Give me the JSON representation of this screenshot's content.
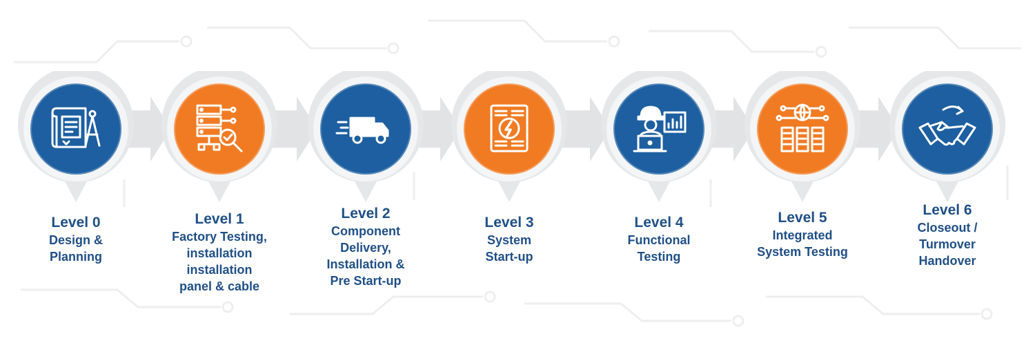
{
  "colors": {
    "blue": "#1d5fa0",
    "orange": "#f07b23",
    "text": "#1f4f86",
    "arrow": "#e2e3e5"
  },
  "stages": [
    {
      "level": "Level 0",
      "description": "Design &\nPlanning",
      "color": "blue",
      "icon": "blueprint-icon"
    },
    {
      "level": "Level 1",
      "description": "Factory Testing,\ninstallation\ninstallation\npanel & cable",
      "color": "orange",
      "icon": "server-inspection-icon"
    },
    {
      "level": "Level 2",
      "description": "Component\nDelivery,\nInstallation &\nPre Start-up",
      "color": "blue",
      "icon": "delivery-truck-icon"
    },
    {
      "level": "Level 3",
      "description": "System\nStart-up",
      "color": "orange",
      "icon": "power-server-icon"
    },
    {
      "level": "Level 4",
      "description": "Functional\nTesting",
      "color": "blue",
      "icon": "engineer-monitor-icon"
    },
    {
      "level": "Level 5",
      "description": "Integrated\nSystem Testing",
      "color": "orange",
      "icon": "network-servers-icon"
    },
    {
      "level": "Level 6",
      "description": "Closeout /\nTurmover\nHandover",
      "color": "blue",
      "icon": "handshake-icon"
    }
  ]
}
